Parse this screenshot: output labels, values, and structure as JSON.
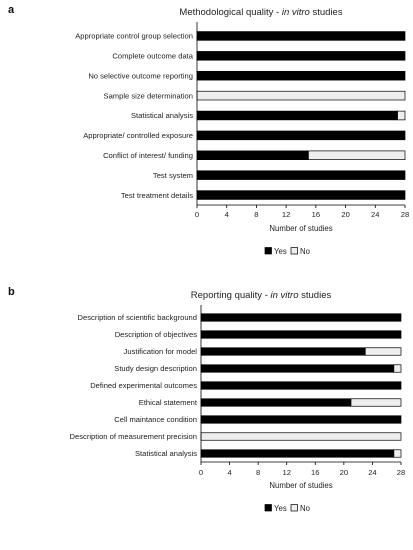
{
  "chart_data": [
    {
      "type": "bar",
      "orientation": "horizontal",
      "stacked": true,
      "panel_label": "a",
      "title": {
        "main": "Methodological quality - ",
        "italic": "in vitro",
        "tail": " studies"
      },
      "categories": [
        "Appropriate control group selection",
        "Complete outcome data",
        "No selective outcome reporting",
        "Sample size determination",
        "Statistical analysis",
        "Appropriate/ controlled exposure",
        "Conflict of interest/ funding",
        "Test system",
        "Test treatment details"
      ],
      "series": [
        {
          "name": "Yes",
          "color": "#000000",
          "values": [
            28,
            28,
            28,
            0,
            27,
            28,
            15,
            28,
            28
          ]
        },
        {
          "name": "No",
          "color": "#eeeeee",
          "values": [
            0,
            0,
            0,
            28,
            1,
            0,
            13,
            0,
            0
          ]
        }
      ],
      "xlabel": "Number of studies",
      "xlim": [
        0,
        28
      ],
      "xticks": [
        "0",
        "4",
        "8",
        "12",
        "16",
        "20",
        "24",
        "28"
      ],
      "grid": false,
      "legend": "bottom"
    },
    {
      "type": "bar",
      "orientation": "horizontal",
      "stacked": true,
      "panel_label": "b",
      "title": {
        "main": "Reporting quality - ",
        "italic": "in vitro",
        "tail": " studies"
      },
      "categories": [
        "Description of scientific background",
        "Description of objectives",
        "Justification for model",
        "Study design description",
        "Defined experimental outcomes",
        "Ethical statement",
        "Cell maintance condition",
        "Description of measurement precision",
        "Statistical analysis"
      ],
      "series": [
        {
          "name": "Yes",
          "color": "#000000",
          "values": [
            28,
            28,
            23,
            27,
            28,
            21,
            28,
            0,
            27
          ]
        },
        {
          "name": "No",
          "color": "#eeeeee",
          "values": [
            0,
            0,
            5,
            1,
            0,
            7,
            0,
            28,
            1
          ]
        }
      ],
      "xlabel": "Number of studies",
      "xlim": [
        0,
        28
      ],
      "xticks": [
        "0",
        "4",
        "8",
        "12",
        "16",
        "20",
        "24",
        "28"
      ],
      "grid": false,
      "legend": "bottom"
    }
  ]
}
